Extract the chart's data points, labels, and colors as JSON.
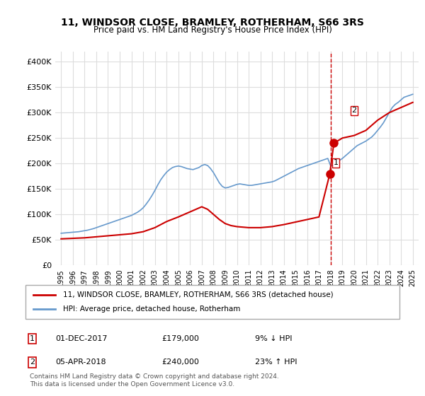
{
  "title": "11, WINDSOR CLOSE, BRAMLEY, ROTHERHAM, S66 3RS",
  "subtitle": "Price paid vs. HM Land Registry's House Price Index (HPI)",
  "legend_line1": "11, WINDSOR CLOSE, BRAMLEY, ROTHERHAM, S66 3RS (detached house)",
  "legend_line2": "HPI: Average price, detached house, Rotherham",
  "annotation1_label": "1",
  "annotation1_date": "01-DEC-2017",
  "annotation1_price": "£179,000",
  "annotation1_hpi": "9% ↓ HPI",
  "annotation2_label": "2",
  "annotation2_date": "05-APR-2018",
  "annotation2_price": "£240,000",
  "annotation2_hpi": "23% ↑ HPI",
  "footer": "Contains HM Land Registry data © Crown copyright and database right 2024.\nThis data is licensed under the Open Government Licence v3.0.",
  "sale1_year": 2017.917,
  "sale1_price": 179000,
  "sale2_year": 2018.27,
  "sale2_price": 240000,
  "vline_year": 2018.0,
  "ylim_min": 0,
  "ylim_max": 420000,
  "xlim_min": 1994.5,
  "xlim_max": 2025.5,
  "line_color_red": "#cc0000",
  "line_color_blue": "#6699cc",
  "vline_color": "#cc0000",
  "bg_color": "#ffffff",
  "grid_color": "#dddddd",
  "yticks": [
    0,
    50000,
    100000,
    150000,
    200000,
    250000,
    300000,
    350000,
    400000
  ],
  "ytick_labels": [
    "£0",
    "£50K",
    "£100K",
    "£150K",
    "£200K",
    "£250K",
    "£300K",
    "£350K",
    "£400K"
  ],
  "xticks": [
    1995,
    1996,
    1997,
    1998,
    1999,
    2000,
    2001,
    2002,
    2003,
    2004,
    2005,
    2006,
    2007,
    2008,
    2009,
    2010,
    2011,
    2012,
    2013,
    2014,
    2015,
    2016,
    2017,
    2018,
    2019,
    2020,
    2021,
    2022,
    2023,
    2024,
    2025
  ],
  "hpi_years": [
    1995,
    1995.25,
    1995.5,
    1995.75,
    1996,
    1996.25,
    1996.5,
    1996.75,
    1997,
    1997.25,
    1997.5,
    1997.75,
    1998,
    1998.25,
    1998.5,
    1998.75,
    1999,
    1999.25,
    1999.5,
    1999.75,
    2000,
    2000.25,
    2000.5,
    2000.75,
    2001,
    2001.25,
    2001.5,
    2001.75,
    2002,
    2002.25,
    2002.5,
    2002.75,
    2003,
    2003.25,
    2003.5,
    2003.75,
    2004,
    2004.25,
    2004.5,
    2004.75,
    2005,
    2005.25,
    2005.5,
    2005.75,
    2006,
    2006.25,
    2006.5,
    2006.75,
    2007,
    2007.25,
    2007.5,
    2007.75,
    2008,
    2008.25,
    2008.5,
    2008.75,
    2009,
    2009.25,
    2009.5,
    2009.75,
    2010,
    2010.25,
    2010.5,
    2010.75,
    2011,
    2011.25,
    2011.5,
    2011.75,
    2012,
    2012.25,
    2012.5,
    2012.75,
    2013,
    2013.25,
    2013.5,
    2013.75,
    2014,
    2014.25,
    2014.5,
    2014.75,
    2015,
    2015.25,
    2015.5,
    2015.75,
    2016,
    2016.25,
    2016.5,
    2016.75,
    2017,
    2017.25,
    2017.5,
    2017.75,
    2018,
    2018.25,
    2018.5,
    2018.75,
    2019,
    2019.25,
    2019.5,
    2019.75,
    2020,
    2020.25,
    2020.5,
    2020.75,
    2021,
    2021.25,
    2021.5,
    2021.75,
    2022,
    2022.25,
    2022.5,
    2022.75,
    2023,
    2023.25,
    2023.5,
    2023.75,
    2024,
    2024.25,
    2024.5,
    2024.75,
    2025
  ],
  "hpi_values": [
    63000,
    63500,
    64000,
    64500,
    65000,
    65500,
    66000,
    67000,
    68000,
    69000,
    70500,
    72000,
    74000,
    76000,
    78000,
    80000,
    82000,
    84000,
    86000,
    88000,
    90000,
    92000,
    94000,
    96000,
    98000,
    101000,
    104000,
    108000,
    113000,
    120000,
    128000,
    137000,
    147000,
    158000,
    168000,
    176000,
    183000,
    188000,
    192000,
    194000,
    195000,
    194000,
    192000,
    190000,
    189000,
    188000,
    190000,
    192000,
    196000,
    198000,
    196000,
    190000,
    182000,
    172000,
    162000,
    155000,
    152000,
    153000,
    155000,
    157000,
    159000,
    160000,
    159000,
    158000,
    157000,
    157000,
    158000,
    159000,
    160000,
    161000,
    162000,
    163000,
    164000,
    166000,
    169000,
    172000,
    175000,
    178000,
    181000,
    184000,
    187000,
    190000,
    192000,
    194000,
    196000,
    198000,
    200000,
    202000,
    204000,
    206000,
    208000,
    210000,
    195000,
    198000,
    202000,
    206000,
    210000,
    215000,
    220000,
    225000,
    230000,
    235000,
    238000,
    241000,
    244000,
    248000,
    252000,
    258000,
    265000,
    272000,
    280000,
    290000,
    300000,
    310000,
    316000,
    320000,
    325000,
    330000,
    332000,
    334000,
    336000
  ],
  "price_line_years": [
    1995,
    1996,
    1997,
    1998,
    1999,
    2000,
    2001,
    2002,
    2003,
    2004,
    2005,
    2006,
    2007,
    2007.5,
    2008,
    2008.5,
    2009,
    2009.5,
    2010,
    2010.5,
    2011,
    2012,
    2013,
    2014,
    2015,
    2016,
    2017,
    2017.917,
    2018.27,
    2019,
    2020,
    2021,
    2022,
    2023,
    2024,
    2025
  ],
  "price_line_values": [
    52000,
    53000,
    54000,
    56000,
    58000,
    60000,
    62000,
    66000,
    74000,
    86000,
    95000,
    105000,
    115000,
    110000,
    100000,
    90000,
    82000,
    78000,
    76000,
    75000,
    74000,
    74000,
    76000,
    80000,
    85000,
    90000,
    95000,
    179000,
    240000,
    250000,
    255000,
    265000,
    285000,
    300000,
    310000,
    320000
  ]
}
